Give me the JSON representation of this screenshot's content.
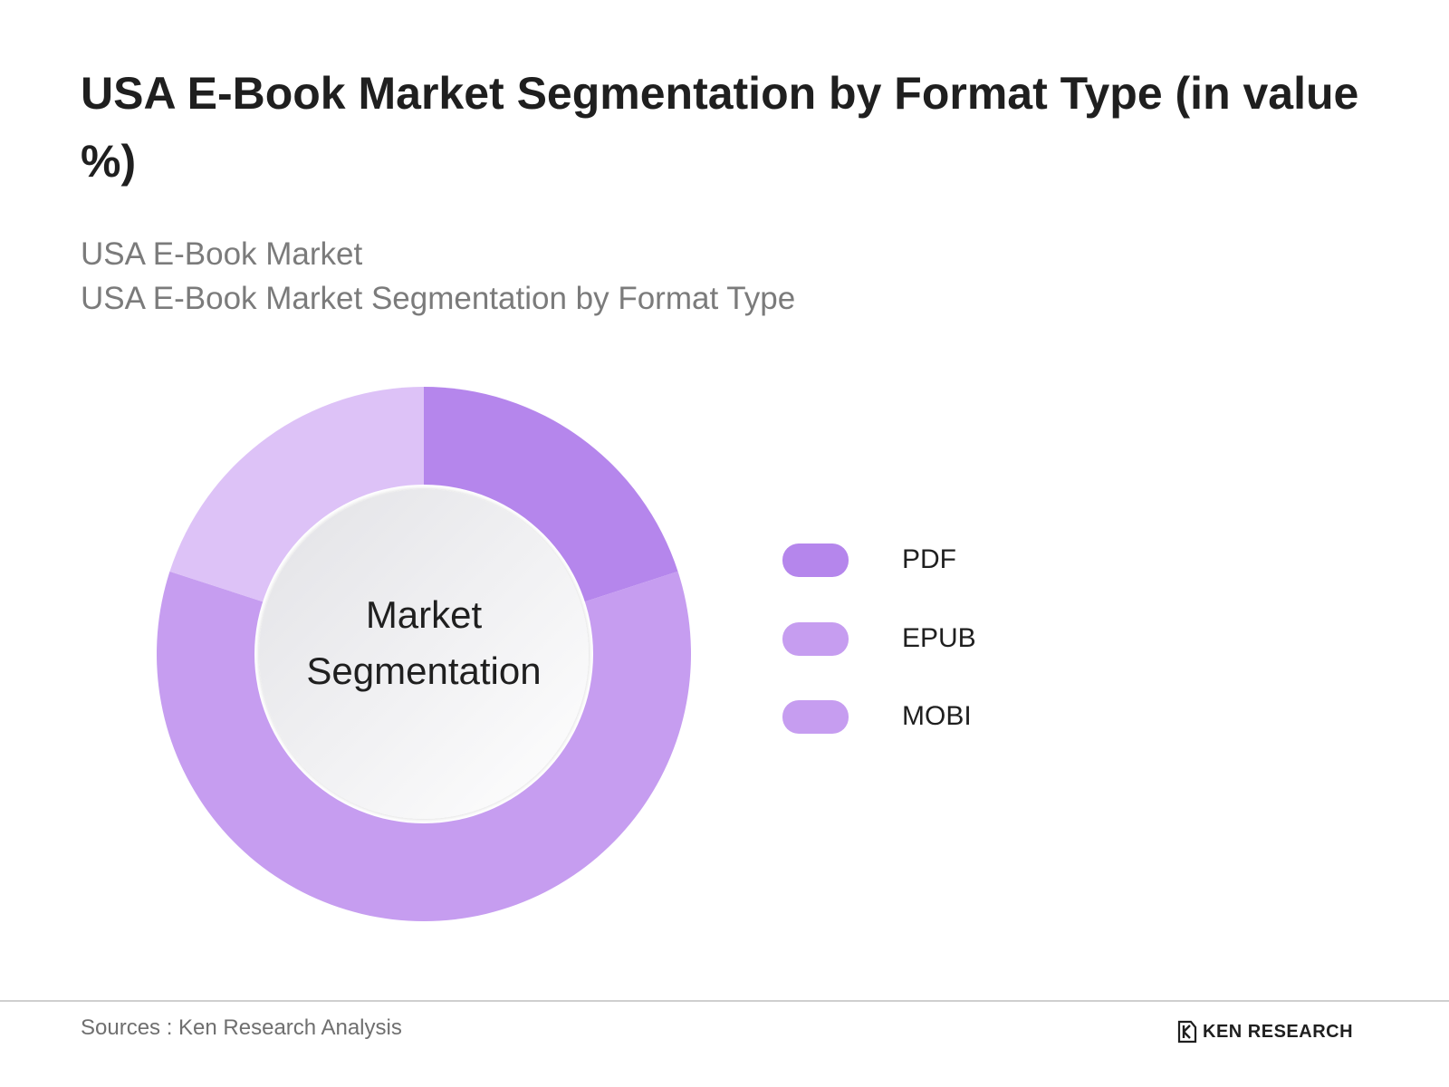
{
  "header": {
    "title": "USA E-Book Market Segmentation by Format Type (in value %)",
    "subtitle_line1": "USA E-Book Market",
    "subtitle_line2": "USA E-Book Market Segmentation by Format Type"
  },
  "chart_data": {
    "type": "pie",
    "donut": true,
    "center_label_line1": "Market",
    "center_label_line2": "Segmentation",
    "categories": [
      "PDF",
      "EPUB",
      "MOBI"
    ],
    "values": [
      20,
      60,
      20
    ],
    "colors": [
      "#b586ec",
      "#c69df0",
      "#ddc2f7"
    ],
    "legend_colors": [
      "#b586ec",
      "#c69df0",
      "#c69df0"
    ],
    "legend_position": "right"
  },
  "footer": {
    "source": "Sources : Ken Research Analysis",
    "brand": "KEN RESEARCH",
    "brand_icon": "ken-research-logo-icon"
  }
}
